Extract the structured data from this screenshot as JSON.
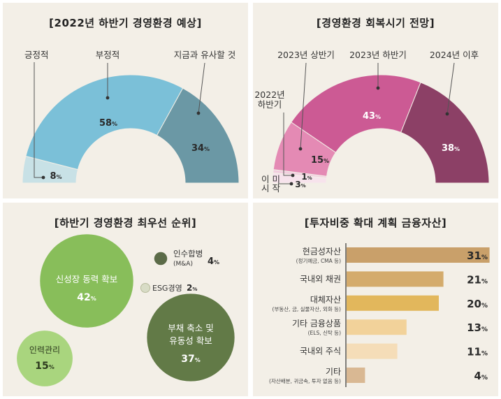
{
  "chart_data": [
    {
      "type": "pie",
      "title": "[2022년 하반기 경영환경 예상]",
      "categories": [
        "긍정적",
        "부정적",
        "지금과 유사할 것"
      ],
      "values": [
        8,
        58,
        34
      ],
      "value_labels": [
        "8%",
        "58%",
        "34%"
      ],
      "colors": [
        "#c8e1e6",
        "#7bc0d8",
        "#6b98a5"
      ]
    },
    {
      "type": "pie",
      "title": "[경영환경 회복시기 전망]",
      "categories": [
        "이미 시작",
        "2022년 하반기",
        "2023년 상반기",
        "2023년 하반기",
        "2024년 이후"
      ],
      "values": [
        3,
        1,
        15,
        43,
        38
      ],
      "value_labels": [
        "3%",
        "1%",
        "15%",
        "43%",
        "38%"
      ],
      "colors": [
        "#f7e3ec",
        "#f2cfdf",
        "#e48ab4",
        "#cc5a94",
        "#8c4066"
      ]
    },
    {
      "type": "scatter",
      "title": "[하반기 경영환경 최우선 순위]",
      "categories": [
        "신성장 동력 확보",
        "부채 축소 및 유동성 확보",
        "인력관리",
        "인수합병 (M&A)",
        "ESG경영"
      ],
      "values": [
        42,
        37,
        15,
        4,
        2
      ],
      "value_labels": [
        "42%",
        "37%",
        "15%",
        "4%",
        "2%"
      ],
      "colors": [
        "#88be5a",
        "#627a47",
        "#a9d57e",
        "#5b6b48",
        "#d8dcc6"
      ]
    },
    {
      "type": "bar",
      "title": "[투자비중 확대 계획 금융자산]",
      "categories": [
        "현금성자산",
        "국내외 채권",
        "대체자산",
        "기타 금융상품",
        "국내외 주식",
        "기타"
      ],
      "subcategories": [
        "(정기예금, CMA 등)",
        "",
        "(부동산, 금, 실물자산, 외화 등)",
        "(ELS, 신탁 등)",
        "",
        "(자산배분, 귀금속, 투자 없음 등)"
      ],
      "values": [
        31,
        21,
        20,
        13,
        11,
        4
      ],
      "value_labels": [
        "31%",
        "21%",
        "20%",
        "13%",
        "11%",
        "4%"
      ],
      "colors": [
        "#c9a06a",
        "#d4ab6c",
        "#e2b75c",
        "#f2d29a",
        "#f5ddb8",
        "#d9b893"
      ]
    }
  ]
}
